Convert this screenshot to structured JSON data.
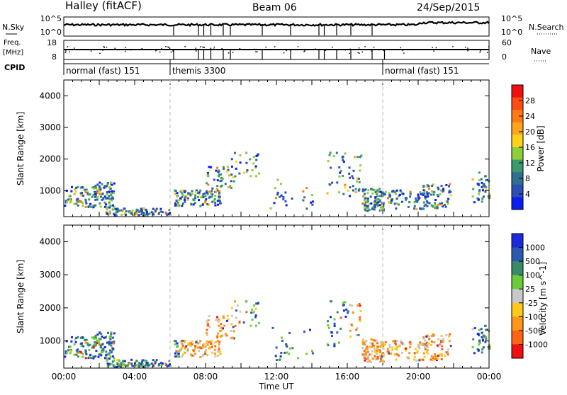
{
  "header": {
    "station": "Halley (fitACF)",
    "beam": "Beam 06",
    "date": "24/Sep/2015"
  },
  "noise_panel": {
    "left_label": "N.Sky",
    "left_ticks": [
      "10^5",
      "10^0"
    ],
    "right_label": "N.Search",
    "right_ticks": [
      "10^5",
      "10^0"
    ]
  },
  "freq_panel": {
    "left_label_line1": "Freq.",
    "left_label_line2": "[MHz]",
    "left_ticks": [
      "18",
      "8"
    ],
    "right_label": "Nave",
    "right_ticks": [
      "60",
      "0"
    ]
  },
  "cpid_panel": {
    "label": "CPID",
    "segments": [
      {
        "label": "normal (fast) 151",
        "start_hour": 0
      },
      {
        "label": "themis 3300",
        "start_hour": 6
      },
      {
        "label": "normal (fast) 151",
        "start_hour": 18
      }
    ]
  },
  "chart_data": [
    {
      "type": "heatmap",
      "name": "power",
      "ylabel": "Slant Range [km]",
      "xlim": [
        0,
        24
      ],
      "ylim": [
        180,
        4500
      ],
      "yticks": [
        "1000",
        "2000",
        "3000",
        "4000"
      ],
      "colorbar": {
        "label": "Power [dB]",
        "ticks": [
          "4",
          "8",
          "12",
          "16",
          "20",
          "24",
          "28"
        ],
        "colors": [
          "#0a1ef0",
          "#2a4fb8",
          "#2f6f8f",
          "#3a9a6a",
          "#8ccf3a",
          "#ffd21a",
          "#ffa51a",
          "#ff7a14",
          "#ff4a10",
          "#f01010"
        ]
      }
    },
    {
      "type": "heatmap",
      "name": "velocity",
      "ylabel": "Slant Range [km]",
      "xlabel": "Time UT",
      "xlim": [
        0,
        24
      ],
      "ylim": [
        180,
        4500
      ],
      "yticks": [
        "1000",
        "2000",
        "3000",
        "4000"
      ],
      "xticks": [
        "00:00",
        "04:00",
        "08:00",
        "12:00",
        "16:00",
        "20:00",
        "00:00"
      ],
      "colorbar": {
        "label": "Velocity [m s^-1]",
        "ticks": [
          "1000",
          "500",
          "100",
          "25",
          "-25",
          "-100",
          "-500",
          "-1000"
        ],
        "colors": [
          "#1a2adc",
          "#2a5ab0",
          "#3a8a6a",
          "#6acc3a",
          "#c8c8c8",
          "#ffc81a",
          "#ff961a",
          "#ff6414",
          "#f01010"
        ]
      }
    }
  ]
}
